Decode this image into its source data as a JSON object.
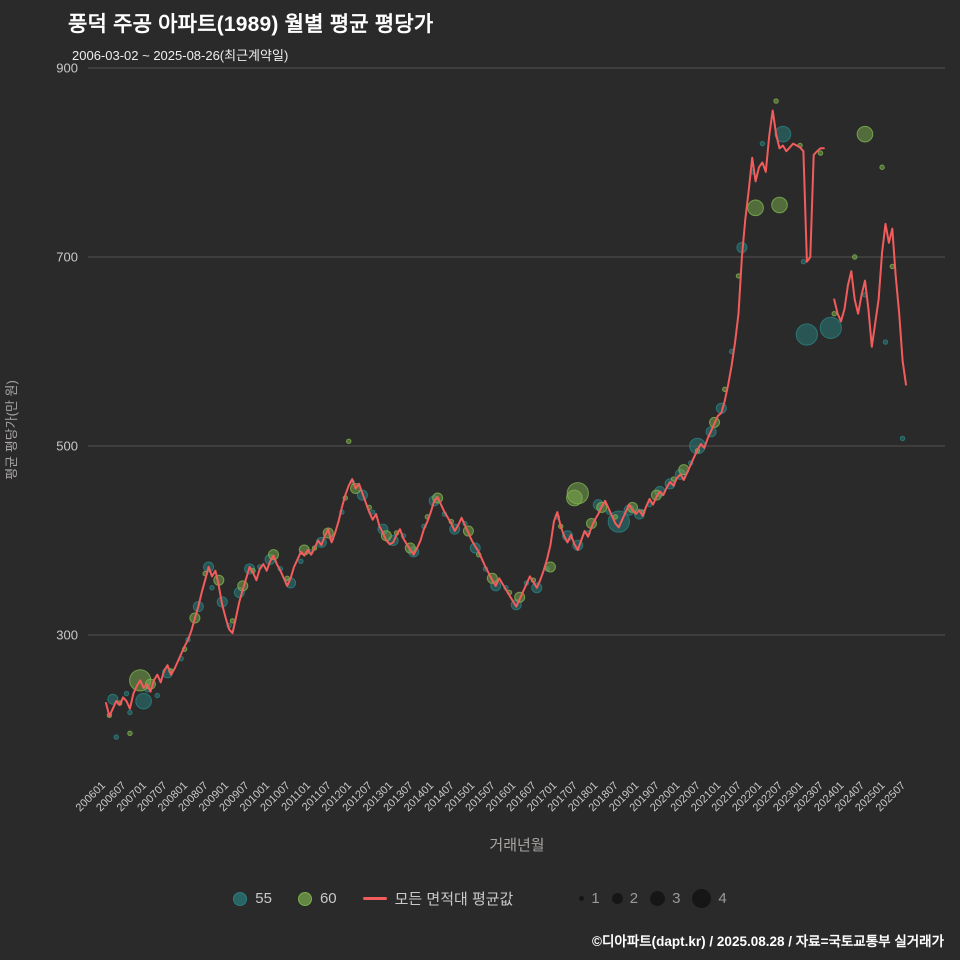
{
  "header": {
    "title": "풍덕 주공 아파트(1989) 월별 평균 평당가",
    "subtitle": "2006-03-02 ~ 2025-08-26(최근계약일)"
  },
  "footer": {
    "credit": "©디아파트(dapt.kr) / 2025.08.28 / 자료=국토교통부 실거래가"
  },
  "colors": {
    "background": "#2b2a2a",
    "grid": "#55514f",
    "tick_text": "#c9c9c9",
    "axis_title": "#a8a5a3",
    "teal": "#2a7f7f",
    "green": "#7cae4e",
    "red": "#f25c5c",
    "size_dot": "#161616"
  },
  "axes": {
    "y_label": "평균 평당가(만 원)",
    "x_label": "거래년월",
    "y_ticks": [
      300,
      500,
      700,
      900
    ],
    "x_ticks": [
      "200601",
      "200607",
      "200701",
      "200707",
      "200801",
      "200807",
      "200901",
      "200907",
      "201001",
      "201007",
      "201101",
      "201107",
      "201201",
      "201207",
      "201301",
      "201307",
      "201401",
      "201407",
      "201501",
      "201507",
      "201601",
      "201607",
      "201701",
      "201707",
      "201801",
      "201807",
      "201901",
      "201907",
      "202001",
      "202007",
      "202101",
      "202107",
      "202201",
      "202207",
      "202301",
      "202307",
      "202401",
      "202407",
      "202501",
      "202507"
    ]
  },
  "legend": {
    "items": [
      {
        "label": "55",
        "color": "#2a7f7f"
      },
      {
        "label": "60",
        "color": "#7cae4e"
      },
      {
        "label": "모든 면적대 평균값",
        "color": "#f25c5c"
      }
    ],
    "sizes": [
      1,
      2,
      3,
      4
    ]
  },
  "chart_data": {
    "type": "scatter",
    "title": "풍덕 주공 아파트(1989) 월별 평균 평당가",
    "subtitle": "2006-03-02 ~ 2025-08-26(최근계약일)",
    "xlabel": "거래년월",
    "ylabel": "평균 평당가(만 원)",
    "ylim": [
      150,
      900
    ],
    "x_start": "200601",
    "x_end": "202507",
    "grid": "horizontal-only",
    "legend_position": "bottom-center",
    "series": [
      {
        "name": "모든 면적대 평균값",
        "type": "line",
        "color": "#f25c5c",
        "monthly_values": [
          228,
          214,
          222,
          230,
          226,
          234,
          230,
          222,
          238,
          246,
          252,
          244,
          248,
          240,
          252,
          258,
          250,
          262,
          268,
          258,
          264,
          272,
          280,
          288,
          295,
          305,
          318,
          330,
          345,
          358,
          372,
          362,
          368,
          352,
          332,
          318,
          306,
          302,
          318,
          335,
          348,
          360,
          372,
          366,
          358,
          370,
          375,
          368,
          378,
          384,
          375,
          368,
          360,
          352,
          360,
          372,
          380,
          388,
          384,
          390,
          385,
          392,
          400,
          395,
          405,
          412,
          398,
          408,
          420,
          435,
          448,
          458,
          465,
          455,
          460,
          450,
          440,
          430,
          422,
          428,
          415,
          408,
          400,
          396,
          398,
          406,
          412,
          402,
          396,
          390,
          385,
          392,
          400,
          412,
          420,
          430,
          442,
          446,
          438,
          430,
          424,
          418,
          410,
          416,
          424,
          416,
          408,
          400,
          394,
          388,
          380,
          372,
          365,
          358,
          352,
          360,
          354,
          348,
          342,
          336,
          330,
          338,
          346,
          354,
          362,
          356,
          350,
          358,
          368,
          380,
          395,
          420,
          430,
          415,
          405,
          398,
          406,
          396,
          390,
          400,
          410,
          404,
          414,
          422,
          428,
          436,
          442,
          434,
          426,
          418,
          414,
          422,
          430,
          438,
          432,
          428,
          432,
          426,
          436,
          444,
          438,
          446,
          452,
          448,
          456,
          462,
          458,
          466,
          470,
          464,
          472,
          480,
          488,
          496,
          502,
          498,
          508,
          516,
          524,
          532,
          535,
          548,
          565,
          585,
          610,
          640,
          700,
          740,
          770,
          805,
          780,
          795,
          800,
          790,
          828,
          855,
          830,
          815,
          818,
          812,
          816,
          820,
          818,
          816,
          812,
          695,
          700,
          808,
          812,
          815,
          815,
          null,
          null,
          655,
          640,
          632,
          645,
          670,
          685,
          655,
          640,
          660,
          675,
          645,
          605,
          630,
          655,
          705,
          735,
          715,
          730,
          680,
          640,
          590,
          565
        ]
      },
      {
        "name": "55",
        "type": "bubble",
        "color": "#2a7f7f",
        "points": [
          [
            "200603",
            232,
            2
          ],
          [
            "200604",
            192,
            1
          ],
          [
            "200607",
            238,
            1
          ],
          [
            "200608",
            218,
            1
          ],
          [
            "200612",
            230,
            3
          ],
          [
            "200701",
            242,
            1
          ],
          [
            "200704",
            236,
            1
          ],
          [
            "200707",
            260,
            2
          ],
          [
            "200711",
            275,
            1
          ],
          [
            "200801",
            295,
            1
          ],
          [
            "200804",
            330,
            2
          ],
          [
            "200807",
            372,
            2
          ],
          [
            "200808",
            350,
            1
          ],
          [
            "200811",
            335,
            2
          ],
          [
            "200901",
            310,
            1
          ],
          [
            "200904",
            345,
            2
          ],
          [
            "200907",
            370,
            2
          ],
          [
            "200910",
            372,
            1
          ],
          [
            "201001",
            380,
            2
          ],
          [
            "201004",
            370,
            1
          ],
          [
            "201007",
            355,
            2
          ],
          [
            "201010",
            378,
            1
          ],
          [
            "201101",
            388,
            1
          ],
          [
            "201104",
            398,
            2
          ],
          [
            "201107",
            402,
            1
          ],
          [
            "201110",
            430,
            1
          ],
          [
            "201201",
            462,
            1
          ],
          [
            "201204",
            448,
            2
          ],
          [
            "201207",
            430,
            1
          ],
          [
            "201210",
            412,
            2
          ],
          [
            "201301",
            400,
            2
          ],
          [
            "201304",
            405,
            1
          ],
          [
            "201307",
            388,
            2
          ],
          [
            "201310",
            415,
            1
          ],
          [
            "201401",
            442,
            2
          ],
          [
            "201404",
            428,
            1
          ],
          [
            "201407",
            412,
            2
          ],
          [
            "201410",
            418,
            1
          ],
          [
            "201501",
            392,
            2
          ],
          [
            "201504",
            370,
            1
          ],
          [
            "201507",
            352,
            2
          ],
          [
            "201510",
            350,
            1
          ],
          [
            "201601",
            332,
            2
          ],
          [
            "201604",
            355,
            1
          ],
          [
            "201607",
            350,
            2
          ],
          [
            "201610",
            370,
            1
          ],
          [
            "201701",
            425,
            1
          ],
          [
            "201704",
            405,
            2
          ],
          [
            "201707",
            395,
            2
          ],
          [
            "201710",
            408,
            1
          ],
          [
            "201801",
            438,
            2
          ],
          [
            "201804",
            430,
            1
          ],
          [
            "201807",
            420,
            4
          ],
          [
            "201810",
            432,
            2
          ],
          [
            "201901",
            428,
            2
          ],
          [
            "201904",
            438,
            1
          ],
          [
            "201907",
            452,
            2
          ],
          [
            "201910",
            460,
            2
          ],
          [
            "202001",
            470,
            2
          ],
          [
            "202004",
            482,
            1
          ],
          [
            "202006",
            500,
            3
          ],
          [
            "202010",
            515,
            2
          ],
          [
            "202101",
            540,
            2
          ],
          [
            "202104",
            600,
            1
          ],
          [
            "202107",
            710,
            2
          ],
          [
            "202110",
            790,
            1
          ],
          [
            "202201",
            820,
            1
          ],
          [
            "202207",
            830,
            3
          ],
          [
            "202301",
            695,
            1
          ],
          [
            "202302",
            618,
            4
          ],
          [
            "202309",
            625,
            4
          ],
          [
            "202407",
            660,
            1
          ],
          [
            "202501",
            610,
            1
          ],
          [
            "202506",
            508,
            1
          ]
        ]
      },
      {
        "name": "60",
        "type": "bubble",
        "color": "#7cae4e",
        "points": [
          [
            "200602",
            215,
            1
          ],
          [
            "200605",
            228,
            1
          ],
          [
            "200608",
            196,
            1
          ],
          [
            "200611",
            252,
            4
          ],
          [
            "200702",
            248,
            2
          ],
          [
            "200708",
            262,
            1
          ],
          [
            "200712",
            285,
            1
          ],
          [
            "200803",
            318,
            2
          ],
          [
            "200806",
            365,
            1
          ],
          [
            "200810",
            358,
            2
          ],
          [
            "200902",
            315,
            1
          ],
          [
            "200905",
            352,
            2
          ],
          [
            "200908",
            368,
            1
          ],
          [
            "201002",
            385,
            2
          ],
          [
            "201006",
            360,
            1
          ],
          [
            "201011",
            390,
            2
          ],
          [
            "201102",
            392,
            1
          ],
          [
            "201106",
            408,
            2
          ],
          [
            "201111",
            445,
            1
          ],
          [
            "201112",
            505,
            1
          ],
          [
            "201202",
            455,
            2
          ],
          [
            "201206",
            435,
            1
          ],
          [
            "201211",
            405,
            2
          ],
          [
            "201302",
            408,
            1
          ],
          [
            "201306",
            392,
            2
          ],
          [
            "201311",
            425,
            1
          ],
          [
            "201402",
            445,
            2
          ],
          [
            "201406",
            420,
            1
          ],
          [
            "201411",
            410,
            2
          ],
          [
            "201502",
            385,
            1
          ],
          [
            "201506",
            360,
            2
          ],
          [
            "201511",
            345,
            1
          ],
          [
            "201602",
            340,
            2
          ],
          [
            "201606",
            358,
            1
          ],
          [
            "201611",
            372,
            2
          ],
          [
            "201702",
            415,
            1
          ],
          [
            "201706",
            445,
            3
          ],
          [
            "201707",
            450,
            4
          ],
          [
            "201711",
            418,
            2
          ],
          [
            "201802",
            435,
            2
          ],
          [
            "201806",
            425,
            1
          ],
          [
            "201811",
            435,
            2
          ],
          [
            "201902",
            430,
            1
          ],
          [
            "201906",
            448,
            2
          ],
          [
            "201911",
            465,
            1
          ],
          [
            "202002",
            475,
            2
          ],
          [
            "202006",
            495,
            1
          ],
          [
            "202011",
            525,
            2
          ],
          [
            "202102",
            560,
            1
          ],
          [
            "202106",
            680,
            1
          ],
          [
            "202111",
            752,
            3
          ],
          [
            "202205",
            865,
            1
          ],
          [
            "202206",
            755,
            3
          ],
          [
            "202212",
            818,
            1
          ],
          [
            "202306",
            810,
            1
          ],
          [
            "202310",
            640,
            1
          ],
          [
            "202404",
            700,
            1
          ],
          [
            "202407",
            830,
            3
          ],
          [
            "202412",
            795,
            1
          ],
          [
            "202503",
            690,
            1
          ]
        ]
      }
    ]
  }
}
